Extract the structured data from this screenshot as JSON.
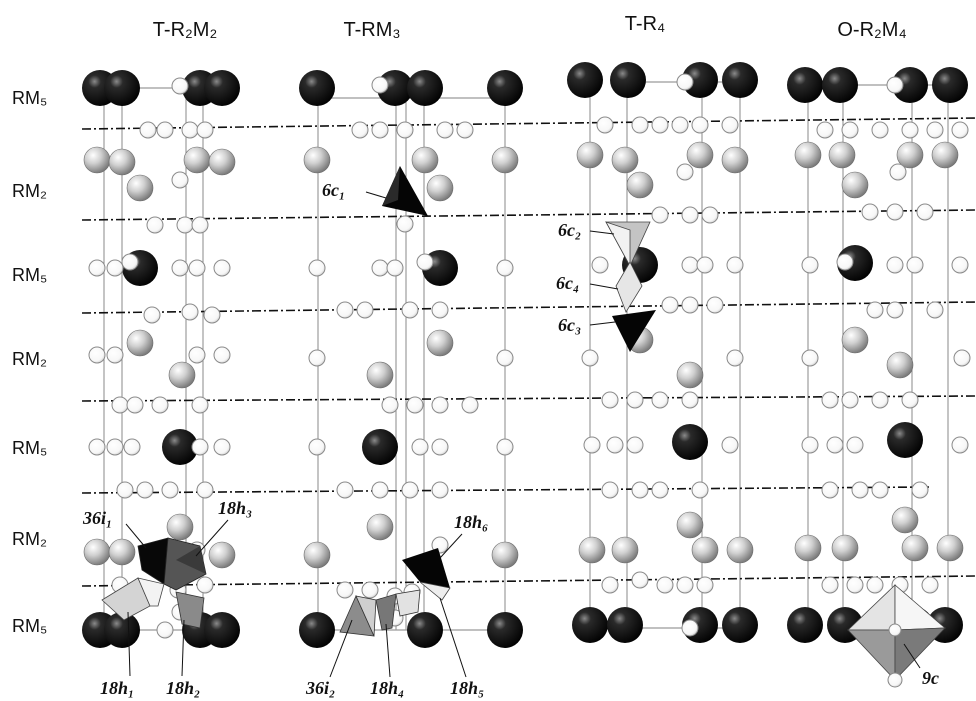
{
  "figure": {
    "columns": [
      {
        "title": "T-R₂M₂"
      },
      {
        "title": "T-RM₃"
      },
      {
        "title": "T-R₄"
      },
      {
        "title": "O-R₂M₄"
      }
    ],
    "layers": [
      "RM₅",
      "RM₂",
      "RM₅",
      "RM₂",
      "RM₅",
      "RM₂",
      "RM₅"
    ],
    "sites": {
      "c1": "6c₁",
      "c2": "6c₂",
      "c3": "6c₃",
      "c4": "6c₄",
      "i1": "36i₁",
      "i2": "36i₂",
      "h1": "18h₁",
      "h2": "18h₂",
      "h3": "18h₃",
      "h4": "18h₄",
      "h5": "18h₅",
      "h6": "18h₆",
      "c9": "9c"
    }
  },
  "colors": {
    "atom_black": "#111111",
    "atom_gray": "#a8a8a8",
    "atom_white": "#ffffff",
    "background": "#ffffff"
  }
}
